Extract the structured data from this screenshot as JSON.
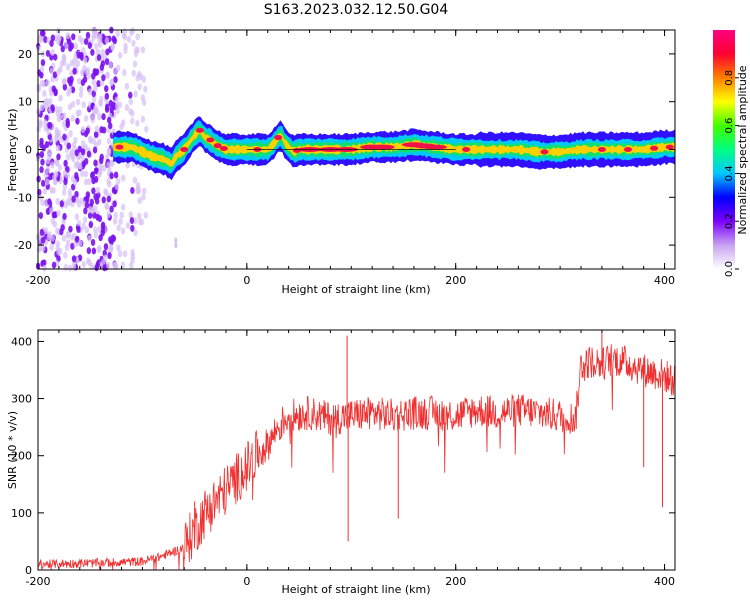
{
  "chart_data": [
    {
      "type": "heatmap",
      "title": "S163.2023.032.12.50.G04",
      "xlabel": "Height of straight line (km)",
      "ylabel": "Frequency (Hz)",
      "xlim": [
        -200,
        410
      ],
      "ylim": [
        -25,
        25
      ],
      "xticks": [
        -200,
        0,
        200,
        400
      ],
      "yticks": [
        -20,
        -10,
        0,
        10,
        20
      ],
      "colorbar": {
        "label": "Normalized spectral amplitude",
        "range": [
          0,
          1
        ],
        "ticks": [
          "0.0",
          "0.2",
          "0.4",
          "0.6",
          "0.8"
        ],
        "colors": [
          "#ffffff",
          "#c8a2f0",
          "#7a00ff",
          "#0000ff",
          "#00c8ff",
          "#00ff80",
          "#40ff00",
          "#ffff00",
          "#ff8000",
          "#ff0030",
          "#ff0080"
        ]
      },
      "noise_region_x": [
        -200,
        -95
      ],
      "ridge": {
        "x": [
          -125,
          -110,
          -100,
          -90,
          -80,
          -72,
          -68,
          -60,
          -55,
          -50,
          -45,
          -40,
          -35,
          -30,
          -25,
          -20,
          -10,
          0,
          10,
          20,
          25,
          30,
          33,
          36,
          40,
          45,
          50,
          60,
          80,
          100,
          120,
          140,
          160,
          180,
          200,
          220,
          240,
          260,
          280,
          300,
          320,
          340,
          360,
          380,
          400,
          410
        ],
        "y": [
          0.5,
          0.5,
          -0.5,
          -1.5,
          -2.0,
          -3.0,
          -1.5,
          0.0,
          1.5,
          3.0,
          4.0,
          2.5,
          2.0,
          1.0,
          0.5,
          0.0,
          0.0,
          0.0,
          0.0,
          0.0,
          1.0,
          2.5,
          3.0,
          1.5,
          0.5,
          -0.5,
          0.0,
          0.0,
          0.0,
          0.0,
          0.5,
          0.5,
          1.0,
          0.5,
          0.0,
          0.0,
          0.0,
          0.0,
          -0.5,
          -0.5,
          0.0,
          0.0,
          0.0,
          0.0,
          0.5,
          0.5
        ]
      }
    },
    {
      "type": "line",
      "xlabel": "Height of straight line (km)",
      "ylabel": "SNR (10 * v/v)",
      "xlim": [
        -200,
        410
      ],
      "ylim": [
        0,
        420
      ],
      "xticks": [
        -200,
        0,
        200,
        400
      ],
      "yticks": [
        0,
        100,
        200,
        300,
        400
      ],
      "series": [
        {
          "color": "#f03030",
          "x": [
            -200,
            -150,
            -100,
            -80,
            -60,
            -50,
            -40,
            -30,
            -20,
            -10,
            0,
            10,
            20,
            30,
            40,
            60,
            80,
            100,
            120,
            140,
            160,
            180,
            200,
            220,
            240,
            260,
            280,
            300,
            315,
            320,
            330,
            340,
            350,
            360,
            380,
            400,
            410
          ],
          "y": [
            10,
            12,
            15,
            25,
            40,
            70,
            100,
            120,
            140,
            160,
            180,
            200,
            220,
            250,
            270,
            275,
            265,
            270,
            275,
            270,
            275,
            275,
            270,
            280,
            275,
            280,
            275,
            270,
            265,
            360,
            365,
            360,
            370,
            365,
            350,
            340,
            330
          ]
        }
      ],
      "spikes": [
        {
          "x": 96,
          "y": 410
        },
        {
          "x": 97,
          "y": 50
        },
        {
          "x": 340,
          "y": 415
        },
        {
          "x": 398,
          "y": 110
        },
        {
          "x": -50,
          "y": 120
        },
        {
          "x": 145,
          "y": 90
        },
        {
          "x": 380,
          "y": 180
        }
      ]
    }
  ]
}
